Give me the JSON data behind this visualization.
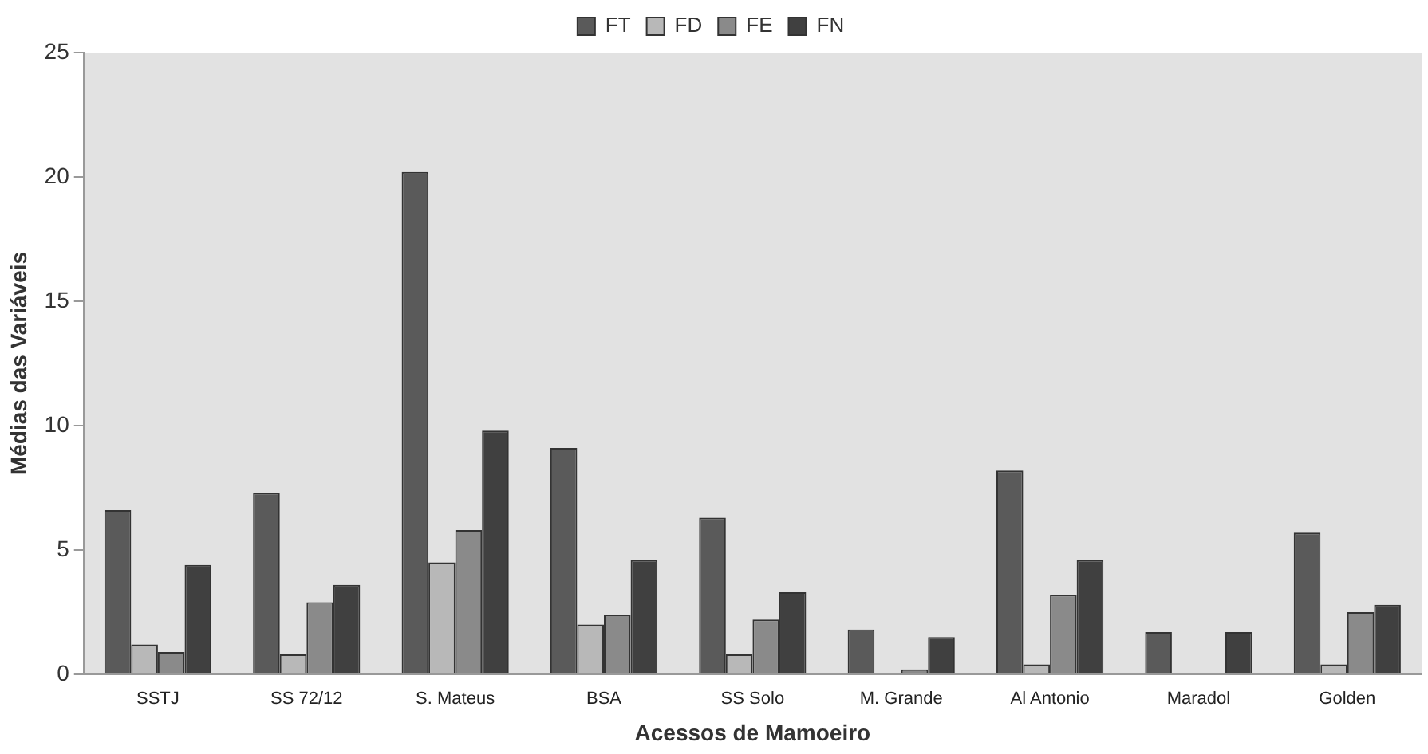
{
  "chart_data": {
    "type": "bar",
    "xlabel": "Acessos de Mamoeiro",
    "ylabel": "Médias das Variáveis",
    "categories": [
      "SSTJ",
      "SS 72/12",
      "S. Mateus",
      "BSA",
      "SS Solo",
      "M. Grande",
      "Al Antonio",
      "Maradol",
      "Golden"
    ],
    "series": [
      {
        "name": "FT",
        "color": "#5a5a5a",
        "values": [
          6.6,
          7.3,
          20.2,
          9.1,
          6.3,
          1.8,
          8.2,
          1.7,
          5.7
        ]
      },
      {
        "name": "FD",
        "color": "#b8b8b8",
        "values": [
          1.2,
          0.8,
          4.5,
          2.0,
          0.8,
          0,
          0.4,
          0,
          0.4
        ]
      },
      {
        "name": "FE",
        "color": "#8a8a8a",
        "values": [
          0.9,
          2.9,
          5.8,
          2.4,
          2.2,
          0.2,
          3.2,
          0,
          2.5
        ]
      },
      {
        "name": "FN",
        "color": "#404040",
        "values": [
          4.4,
          3.6,
          9.8,
          4.6,
          3.3,
          1.5,
          4.6,
          1.7,
          2.8
        ]
      }
    ],
    "ylim": [
      0,
      25
    ],
    "yticks": [
      0,
      5,
      10,
      15,
      20,
      25
    ],
    "grid": false,
    "legend": "top"
  }
}
